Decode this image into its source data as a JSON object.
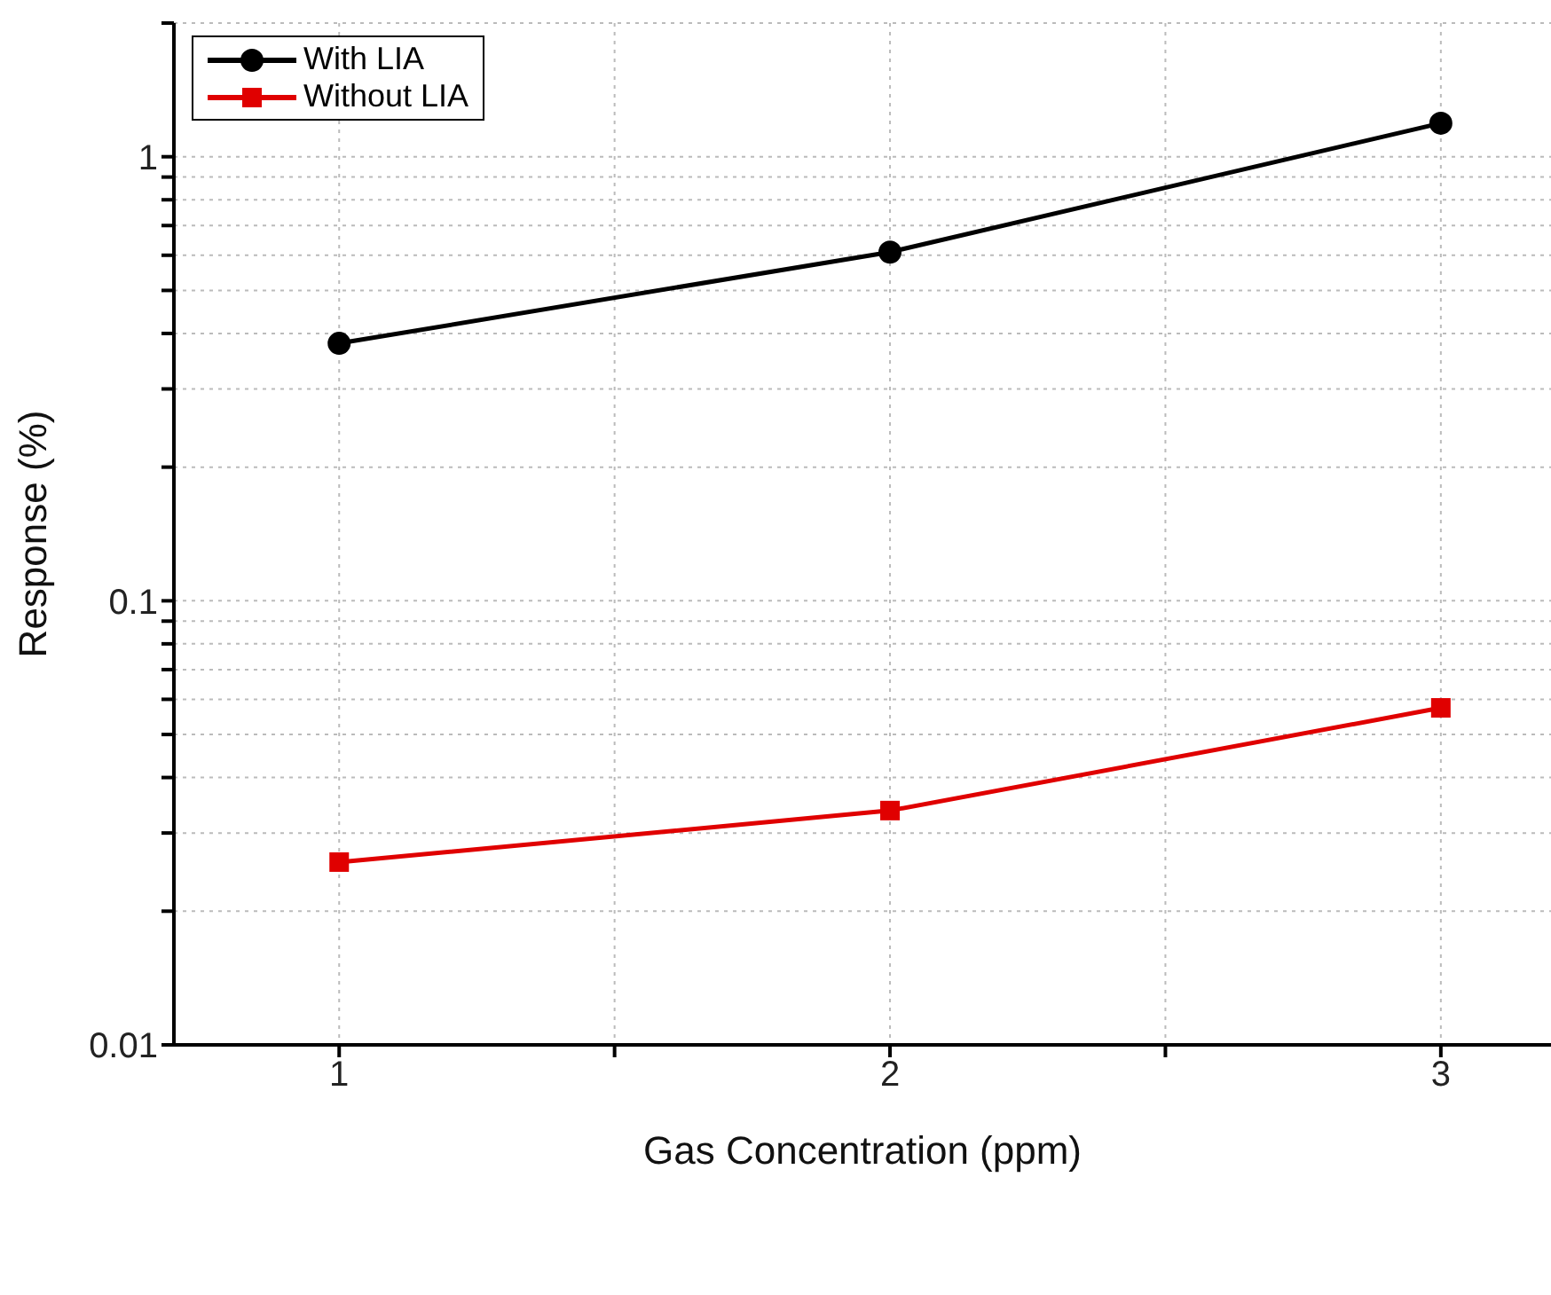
{
  "chart_data": {
    "type": "line",
    "xlabel": "Gas Concentration (ppm)",
    "ylabel": "Response (%)",
    "x": [
      1,
      2,
      3
    ],
    "series": [
      {
        "name": "With LIA",
        "color": "#000000",
        "marker": "circle",
        "values": [
          0.38,
          0.61,
          1.19
        ]
      },
      {
        "name": "Without LIA",
        "color": "#e00000",
        "marker": "square",
        "values": [
          0.0258,
          0.0337,
          0.0574
        ]
      }
    ],
    "log": "y",
    "xlim": [
      0.7,
      3.2
    ],
    "ylim": [
      0.01,
      2
    ],
    "xticks": [
      1,
      {
        "value": 1.5,
        "label": null
      },
      2,
      {
        "value": 2.5,
        "label": null
      },
      3
    ],
    "yticks": [
      {
        "value": 0.01,
        "label": "0.01"
      },
      {
        "value": 0.02,
        "label": null
      },
      {
        "value": 0.03,
        "label": null
      },
      {
        "value": 0.04,
        "label": null
      },
      {
        "value": 0.05,
        "label": null
      },
      {
        "value": 0.06,
        "label": null
      },
      {
        "value": 0.07,
        "label": null
      },
      {
        "value": 0.08,
        "label": null
      },
      {
        "value": 0.09,
        "label": null
      },
      {
        "value": 0.1,
        "label": "0.1"
      },
      {
        "value": 0.2,
        "label": null
      },
      {
        "value": 0.3,
        "label": null
      },
      {
        "value": 0.4,
        "label": null
      },
      {
        "value": 0.5,
        "label": null
      },
      {
        "value": 0.6,
        "label": null
      },
      {
        "value": 0.7,
        "label": null
      },
      {
        "value": 0.8,
        "label": null
      },
      {
        "value": 0.9,
        "label": null
      },
      {
        "value": 1,
        "label": "1"
      },
      {
        "value": 2,
        "label": null
      }
    ],
    "grid": true,
    "legend": "top left",
    "line_style": "solid"
  }
}
